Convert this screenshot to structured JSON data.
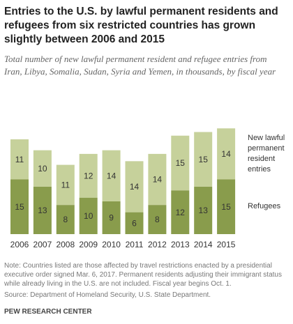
{
  "chart_data": {
    "type": "stacked-bar",
    "title": "Entries to the U.S. by lawful permanent residents and refugees from six restricted countries has grown slightly between 2006 and 2015",
    "subtitle": "Total number of new lawful permanent resident and refugee entries from Iran, Libya, Somalia, Sudan, Syria and Yemen, in thousands, by fiscal year",
    "categories": [
      "2006",
      "2007",
      "2008",
      "2009",
      "2010",
      "2011",
      "2012",
      "2013",
      "2014",
      "2015"
    ],
    "series": [
      {
        "name": "Refugees",
        "color": "#899c4c",
        "values": [
          15,
          13,
          8,
          10,
          9,
          6,
          8,
          12,
          13,
          15
        ]
      },
      {
        "name": "New lawful permanent resident entries",
        "color": "#c6d19b",
        "values": [
          11,
          10,
          11,
          12,
          14,
          14,
          14,
          15,
          15,
          14
        ]
      }
    ],
    "ylim": [
      0,
      30
    ],
    "grid": false
  },
  "footer": {
    "note": "Note: Countries listed are those affected by travel restrictions enacted by a presidential executive order signed Mar. 6, 2017. Permanent residents adjusting their immigrant status while already living in the U.S. are not included. Fiscal year begins Oct. 1.",
    "source": "Source: Department of Homeland Security, U.S. State Department.",
    "credit": "PEW RESEARCH CENTER"
  }
}
